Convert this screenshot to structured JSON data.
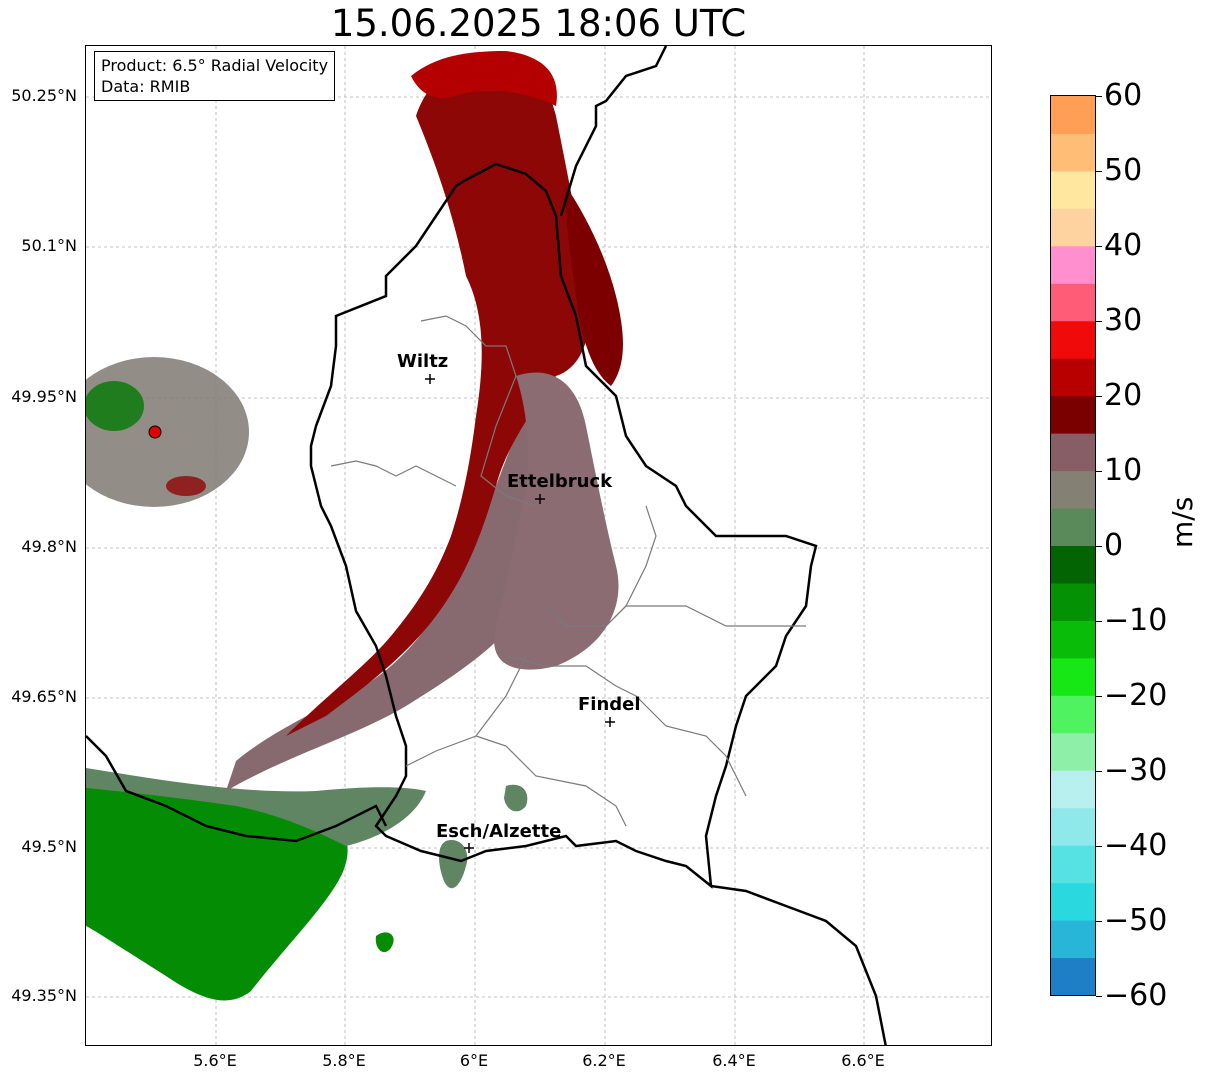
{
  "title": "15.06.2025 18:06 UTC",
  "info": {
    "product": "Product: 6.5° Radial Velocity",
    "data": "Data: RMIB"
  },
  "axes": {
    "y_ticks": [
      "50.25°N",
      "50.1°N",
      "49.95°N",
      "49.8°N",
      "49.65°N",
      "49.5°N",
      "49.35°N"
    ],
    "x_ticks": [
      "5.6°E",
      "5.8°E",
      "6°E",
      "6.2°E",
      "6.4°E",
      "6.6°E"
    ]
  },
  "cities": [
    {
      "name": "Wiltz"
    },
    {
      "name": "Ettelbruck"
    },
    {
      "name": "Findel"
    },
    {
      "name": "Esch/Alzette"
    }
  ],
  "colorbar": {
    "unit": "m/s",
    "ticks": [
      "60",
      "50",
      "40",
      "30",
      "20",
      "10",
      "0",
      "−10",
      "−20",
      "−30",
      "−40",
      "−50",
      "−60"
    ],
    "range": [
      -60,
      60
    ],
    "colors": [
      "#1f7fc6",
      "#28b6d8",
      "#2ad9df",
      "#56e2e3",
      "#8fe9ea",
      "#b8f0f0",
      "#8ef0a8",
      "#4ff25f",
      "#16e816",
      "#08bc08",
      "#049204",
      "#036403",
      "#5a8a5a",
      "#848074",
      "#885e66",
      "#7a0000",
      "#b80000",
      "#f00a0a",
      "#ff5c78",
      "#ff8fcf",
      "#ffd3a0",
      "#ffe7a0",
      "#ffbd75",
      "#ff9e55"
    ]
  }
}
